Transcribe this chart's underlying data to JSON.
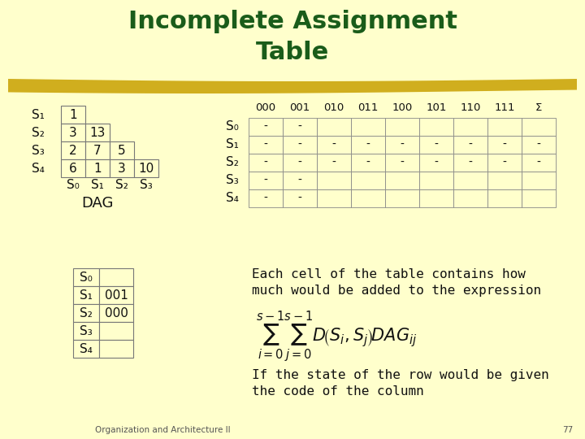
{
  "bg_color": "#FFFFCC",
  "title_line1": "Incomplete Assignment",
  "title_line2": "Table",
  "title_color": "#1a5c1a",
  "highlight_color": "#C8A000",
  "dag_table": {
    "rows": [
      "S₁",
      "S₂",
      "S₃",
      "S₄"
    ],
    "cols": [
      "S₀",
      "S₁",
      "S₂",
      "S₃"
    ],
    "data": [
      [
        "1",
        "",
        "",
        ""
      ],
      [
        "3",
        "13",
        "",
        ""
      ],
      [
        "2",
        "7",
        "5",
        ""
      ],
      [
        "6",
        "1",
        "3",
        "10"
      ]
    ]
  },
  "dag_label": "DAG",
  "code_table": {
    "rows": [
      "S₀",
      "S₁",
      "S₂",
      "S₃",
      "S₄"
    ],
    "codes": [
      "",
      "001",
      "000",
      "",
      ""
    ]
  },
  "assign_table": {
    "col_headers": [
      "000",
      "001",
      "010",
      "011",
      "100",
      "101",
      "110",
      "111",
      "Σ"
    ],
    "row_headers": [
      "S₀",
      "S₁",
      "S₂",
      "S₃",
      "S₄"
    ],
    "data": [
      [
        "-",
        "-",
        "",
        "",
        "",
        "",
        "",
        "",
        ""
      ],
      [
        "-",
        "-",
        "-",
        "-",
        "-",
        "-",
        "-",
        "-",
        "-"
      ],
      [
        "-",
        "-",
        "-",
        "-",
        "-",
        "-",
        "-",
        "-",
        "-"
      ],
      [
        "-",
        "-",
        "",
        "",
        "",
        "",
        "",
        "",
        ""
      ],
      [
        "-",
        "-",
        "",
        "",
        "",
        "",
        "",
        "",
        ""
      ]
    ]
  },
  "body_text1": "Each cell of the table contains how",
  "body_text2": "much would be added to the expression",
  "body_text3": "If the state of the row would be given",
  "body_text4": "the code of the column",
  "footer_text": "Organization and Architecture II",
  "footer_page": "77",
  "text_color": "#111111"
}
